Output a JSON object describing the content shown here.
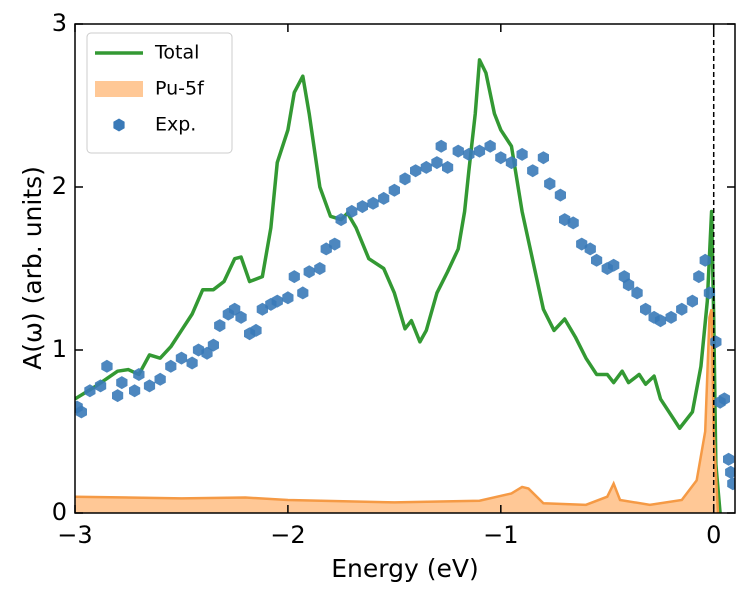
{
  "chart_data": {
    "type": "line",
    "xlabel": "Energy (eV)",
    "ylabel": "A(ω) (arb. units)",
    "xlim": [
      -3,
      0.1
    ],
    "ylim": [
      0,
      3
    ],
    "xticks": [
      {
        "value": -3,
        "label": "−3"
      },
      {
        "value": -2,
        "label": "−2"
      },
      {
        "value": -1,
        "label": "−1"
      },
      0
    ],
    "yticks": [
      0,
      1,
      2,
      3
    ],
    "vline": 0,
    "legend": "upper left",
    "series": [
      {
        "name": "Total",
        "type": "line",
        "color": "#339933",
        "x": [
          -3.0,
          -2.9,
          -2.8,
          -2.75,
          -2.7,
          -2.65,
          -2.6,
          -2.55,
          -2.5,
          -2.45,
          -2.4,
          -2.35,
          -2.3,
          -2.25,
          -2.22,
          -2.18,
          -2.12,
          -2.08,
          -2.05,
          -2.0,
          -1.97,
          -1.93,
          -1.9,
          -1.85,
          -1.8,
          -1.75,
          -1.72,
          -1.68,
          -1.62,
          -1.55,
          -1.5,
          -1.45,
          -1.42,
          -1.38,
          -1.35,
          -1.3,
          -1.25,
          -1.2,
          -1.17,
          -1.15,
          -1.12,
          -1.1,
          -1.07,
          -1.03,
          -1.0,
          -0.95,
          -0.9,
          -0.85,
          -0.8,
          -0.75,
          -0.7,
          -0.65,
          -0.6,
          -0.55,
          -0.5,
          -0.47,
          -0.43,
          -0.4,
          -0.35,
          -0.32,
          -0.28,
          -0.25,
          -0.2,
          -0.16,
          -0.1,
          -0.06,
          -0.03,
          -0.01,
          0.0,
          0.01,
          0.03
        ],
        "values": [
          0.7,
          0.78,
          0.87,
          0.88,
          0.85,
          0.97,
          0.95,
          1.02,
          1.12,
          1.22,
          1.37,
          1.37,
          1.42,
          1.56,
          1.57,
          1.42,
          1.45,
          1.75,
          2.15,
          2.35,
          2.58,
          2.68,
          2.45,
          2.0,
          1.82,
          1.8,
          1.84,
          1.75,
          1.56,
          1.5,
          1.35,
          1.13,
          1.18,
          1.05,
          1.12,
          1.35,
          1.48,
          1.62,
          1.85,
          2.1,
          2.45,
          2.78,
          2.7,
          2.45,
          2.35,
          2.25,
          1.85,
          1.55,
          1.25,
          1.12,
          1.19,
          1.08,
          0.95,
          0.85,
          0.85,
          0.8,
          0.87,
          0.8,
          0.85,
          0.79,
          0.84,
          0.7,
          0.6,
          0.52,
          0.62,
          0.9,
          1.3,
          1.85,
          1.2,
          0.3,
          0.0
        ]
      },
      {
        "name": "Pu-5f",
        "type": "area",
        "color": "#ffc896",
        "edge": "#f59a45",
        "x": [
          -3.0,
          -2.5,
          -2.2,
          -2.0,
          -1.5,
          -1.1,
          -0.95,
          -0.9,
          -0.87,
          -0.8,
          -0.6,
          -0.5,
          -0.47,
          -0.44,
          -0.3,
          -0.15,
          -0.08,
          -0.04,
          -0.02,
          -0.01,
          0.0,
          0.02
        ],
        "values": [
          0.1,
          0.09,
          0.095,
          0.08,
          0.065,
          0.075,
          0.12,
          0.16,
          0.15,
          0.06,
          0.05,
          0.1,
          0.18,
          0.08,
          0.05,
          0.08,
          0.2,
          0.5,
          1.2,
          1.25,
          0.5,
          0.0
        ]
      },
      {
        "name": "Exp.",
        "type": "scatter",
        "color": "#3a7ab8",
        "x": [
          -2.99,
          -2.97,
          -2.93,
          -2.88,
          -2.85,
          -2.8,
          -2.78,
          -2.72,
          -2.7,
          -2.65,
          -2.6,
          -2.55,
          -2.5,
          -2.45,
          -2.42,
          -2.38,
          -2.35,
          -2.32,
          -2.28,
          -2.25,
          -2.22,
          -2.18,
          -2.15,
          -2.12,
          -2.08,
          -2.05,
          -2.0,
          -1.97,
          -1.93,
          -1.9,
          -1.85,
          -1.82,
          -1.78,
          -1.75,
          -1.7,
          -1.65,
          -1.6,
          -1.55,
          -1.5,
          -1.45,
          -1.4,
          -1.35,
          -1.3,
          -1.28,
          -1.25,
          -1.2,
          -1.15,
          -1.1,
          -1.05,
          -1.0,
          -0.95,
          -0.9,
          -0.85,
          -0.8,
          -0.77,
          -0.72,
          -0.7,
          -0.66,
          -0.62,
          -0.58,
          -0.55,
          -0.5,
          -0.47,
          -0.42,
          -0.4,
          -0.36,
          -0.32,
          -0.28,
          -0.25,
          -0.2,
          -0.15,
          -0.1,
          -0.07,
          -0.04,
          -0.02,
          0.01,
          0.03,
          0.05,
          0.07,
          0.08,
          0.09
        ],
        "values": [
          0.65,
          0.62,
          0.75,
          0.78,
          0.9,
          0.72,
          0.8,
          0.75,
          0.85,
          0.78,
          0.82,
          0.9,
          0.95,
          0.92,
          1.0,
          0.98,
          1.03,
          1.15,
          1.22,
          1.25,
          1.2,
          1.1,
          1.12,
          1.25,
          1.28,
          1.3,
          1.32,
          1.45,
          1.35,
          1.48,
          1.5,
          1.62,
          1.65,
          1.8,
          1.85,
          1.88,
          1.9,
          1.93,
          1.98,
          2.05,
          2.1,
          2.12,
          2.15,
          2.25,
          2.12,
          2.22,
          2.2,
          2.22,
          2.25,
          2.18,
          2.15,
          2.2,
          2.1,
          2.18,
          2.02,
          1.95,
          1.8,
          1.78,
          1.65,
          1.62,
          1.55,
          1.5,
          1.52,
          1.45,
          1.4,
          1.35,
          1.25,
          1.2,
          1.18,
          1.2,
          1.25,
          1.3,
          1.45,
          1.55,
          1.35,
          1.05,
          0.68,
          0.7,
          0.33,
          0.25,
          0.18
        ]
      }
    ]
  }
}
